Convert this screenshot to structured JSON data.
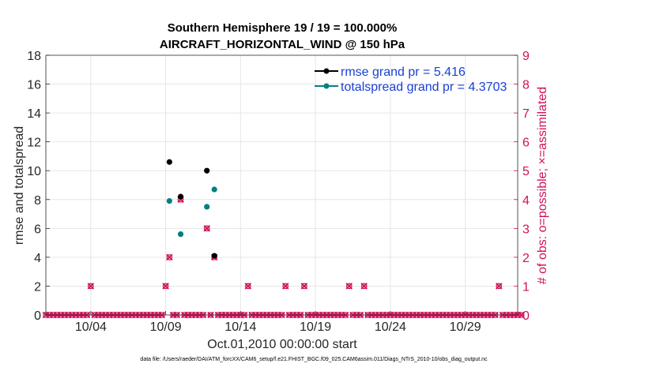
{
  "chart_data": {
    "type": "scatter",
    "title_lines": [
      "Southern Hemisphere 19 / 19 = 100.000%",
      "AIRCRAFT_HORIZONTAL_WIND @ 150 hPa"
    ],
    "xlabel": "Oct.01,2010 00:00:00 start",
    "ylabel_left": "rmse and totalspread",
    "ylabel_right": "# of obs: o=possible; ×=assimilated",
    "xlim": [
      1,
      32.5
    ],
    "ylim_left": [
      0,
      18
    ],
    "ylim_right": [
      0,
      9
    ],
    "x_ticks": [
      {
        "value": 4,
        "label": "10/04"
      },
      {
        "value": 9,
        "label": "10/09"
      },
      {
        "value": 14,
        "label": "10/14"
      },
      {
        "value": 19,
        "label": "10/19"
      },
      {
        "value": 24,
        "label": "10/24"
      },
      {
        "value": 29,
        "label": "10/29"
      }
    ],
    "y_ticks_left": [
      "0",
      "2",
      "4",
      "6",
      "8",
      "10",
      "12",
      "14",
      "16",
      "18"
    ],
    "y_ticks_right": [
      "0",
      "1",
      "2",
      "3",
      "4",
      "5",
      "6",
      "7",
      "8",
      "9"
    ],
    "series": [
      {
        "name": "rmse",
        "legend": "rmse grand pr = 5.416",
        "color": "#000000",
        "axis": "left",
        "x": [
          9.25,
          10.0,
          11.75,
          12.25
        ],
        "y": [
          10.6,
          8.2,
          10.0,
          4.1
        ]
      },
      {
        "name": "totalspread",
        "legend": "totalspread grand pr = 4.3703",
        "color": "#008080",
        "axis": "left",
        "x": [
          9.25,
          10.0,
          11.75,
          12.25
        ],
        "y": [
          7.9,
          5.6,
          7.5,
          8.7
        ]
      },
      {
        "name": "obs_possible",
        "color": "#d0105a",
        "axis": "right",
        "x_start": 1.0,
        "x_step": 0.25,
        "zero_markers": 128,
        "nonzero": [
          {
            "x": 4.0,
            "y": 1
          },
          {
            "x": 9.0,
            "y": 1
          },
          {
            "x": 9.25,
            "y": 2
          },
          {
            "x": 10.0,
            "y": 4
          },
          {
            "x": 11.75,
            "y": 3
          },
          {
            "x": 12.25,
            "y": 2
          },
          {
            "x": 14.5,
            "y": 1
          },
          {
            "x": 17.0,
            "y": 1
          },
          {
            "x": 18.25,
            "y": 1
          },
          {
            "x": 21.25,
            "y": 1
          },
          {
            "x": 22.25,
            "y": 1
          },
          {
            "x": 31.25,
            "y": 1
          }
        ]
      }
    ],
    "grid": true
  },
  "colors": {
    "rmse": "#000000",
    "totalspread": "#008080",
    "obs": "#d0105a",
    "legend_text": "#1a3fd6",
    "grid": "#e6e6e6"
  },
  "footer": "data file: /Users/raeder/DAI/ATM_forcXX/CAM6_setup/f.e21.FHIST_BGC.f09_025.CAM6assim.011/Diags_NTrS_2010-10/obs_diag_output.nc"
}
